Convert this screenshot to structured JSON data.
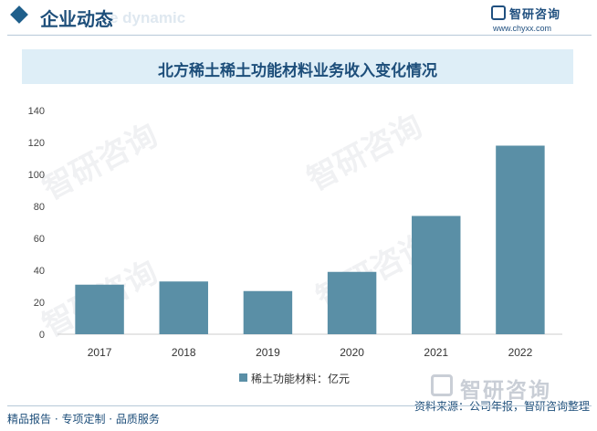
{
  "header": {
    "title": "企业动态",
    "subtitle": "e dynamic",
    "brand": "智研咨询",
    "url": "www.chyxx.com"
  },
  "watermark": {
    "text": "智研咨询"
  },
  "chart_data": {
    "type": "bar",
    "title": "北方稀土稀土功能材料业务收入变化情况",
    "categories": [
      "2017",
      "2018",
      "2019",
      "2020",
      "2021",
      "2022"
    ],
    "series": [
      {
        "name": "稀土功能材料：亿元",
        "values": [
          31,
          33,
          27,
          39,
          74,
          118
        ],
        "color": "#5a8fa6"
      }
    ],
    "ylim": [
      0,
      140
    ],
    "yticks": [
      0,
      20,
      40,
      60,
      80,
      100,
      120,
      140
    ],
    "grid": false,
    "legend": "bottom"
  },
  "footer": {
    "left": "精品报告 · 专项定制 · 品质服务",
    "source": "资料来源：公司年报，智研咨询整理"
  }
}
